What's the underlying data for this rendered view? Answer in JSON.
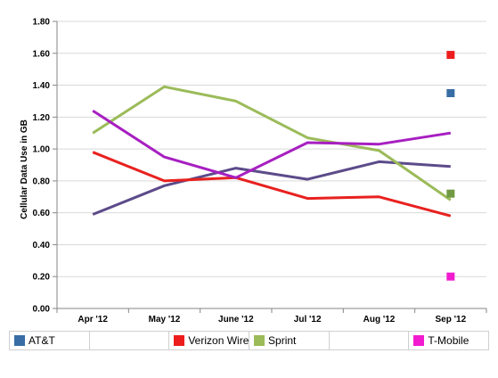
{
  "chart_data": {
    "type": "line",
    "title": "",
    "xlabel": "",
    "ylabel": "Cellular Data Use in GB",
    "ylim": [
      0,
      1.8
    ],
    "yticks": [
      "0.00",
      "0.20",
      "0.40",
      "0.60",
      "0.80",
      "1.00",
      "1.20",
      "1.40",
      "1.60",
      "1.80"
    ],
    "categories": [
      "Apr '12",
      "May '12",
      "June '12",
      "Jul '12",
      "Aug '12",
      "Sep '12"
    ],
    "grid": true,
    "legend_position": "bottom",
    "series": [
      {
        "color": "#5c4b8a",
        "values": [
          0.59,
          0.77,
          0.88,
          0.81,
          0.92,
          0.89
        ]
      },
      {
        "color": "#e8211f",
        "values": [
          0.98,
          0.8,
          0.82,
          0.69,
          0.7,
          0.58
        ]
      },
      {
        "color": "#9bbb59",
        "values": [
          1.1,
          1.39,
          1.3,
          1.07,
          0.99,
          0.68
        ]
      },
      {
        "color": "#a71fc1",
        "values": [
          1.24,
          0.95,
          0.82,
          1.04,
          1.03,
          1.1
        ]
      }
    ],
    "markers": [
      {
        "name": "AT&T",
        "category": "Sep '12",
        "value": 1.35,
        "color": "#386ea5"
      },
      {
        "name": "Verizon Wireless",
        "category": "Sep '12",
        "value": 1.59,
        "color": "#ee1d1d"
      },
      {
        "name": "Sprint",
        "category": "Sep '12",
        "value": 0.72,
        "color": "#6f9a42"
      },
      {
        "name": "T-Mobile",
        "category": "Sep '12",
        "value": 0.2,
        "color": "#f21bd0"
      }
    ]
  },
  "legend": [
    {
      "label": "AT&T",
      "color": "#386ea5"
    },
    {
      "label": "",
      "color": ""
    },
    {
      "label": "Verizon Wireless",
      "color": "#ee1d1d"
    },
    {
      "label": "Sprint",
      "color": "#9bbb59"
    },
    {
      "label": "",
      "color": ""
    },
    {
      "label": "T-Mobile",
      "color": "#f21bd0"
    }
  ]
}
